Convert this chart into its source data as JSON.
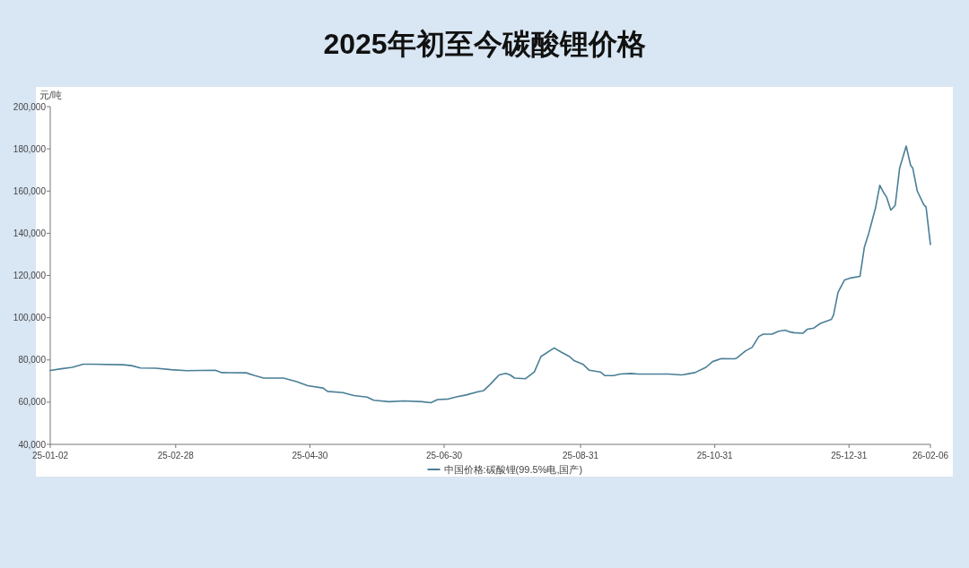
{
  "chart_data": {
    "type": "line",
    "title": "2025年初至今碳酸锂价格",
    "ylabel": "元/吨",
    "x": [
      "2025-01-02",
      "2025-01-07",
      "2025-01-12",
      "2025-01-17",
      "2025-01-21",
      "2025-02-04",
      "2025-02-08",
      "2025-02-12",
      "2025-02-19",
      "2025-02-26",
      "2025-03-05",
      "2025-03-18",
      "2025-03-21",
      "2025-04-01",
      "2025-04-05",
      "2025-04-09",
      "2025-04-18",
      "2025-04-24",
      "2025-04-29",
      "2025-05-06",
      "2025-05-08",
      "2025-05-15",
      "2025-05-20",
      "2025-05-26",
      "2025-05-29",
      "2025-06-05",
      "2025-06-12",
      "2025-06-20",
      "2025-06-24",
      "2025-06-27",
      "2025-07-02",
      "2025-07-06",
      "2025-07-10",
      "2025-07-15",
      "2025-07-18",
      "2025-07-21",
      "2025-07-23",
      "2025-07-25",
      "2025-07-28",
      "2025-07-30",
      "2025-08-01",
      "2025-08-06",
      "2025-08-10",
      "2025-08-13",
      "2025-08-19",
      "2025-08-22",
      "2025-08-26",
      "2025-08-28",
      "2025-09-01",
      "2025-09-04",
      "2025-09-09",
      "2025-09-11",
      "2025-09-15",
      "2025-09-18",
      "2025-09-23",
      "2025-09-26",
      "2025-10-10",
      "2025-10-16",
      "2025-10-22",
      "2025-10-27",
      "2025-10-30",
      "2025-11-03",
      "2025-11-09",
      "2025-11-10",
      "2025-11-14",
      "2025-11-17",
      "2025-11-20",
      "2025-11-22",
      "2025-11-26",
      "2025-11-29",
      "2025-12-02",
      "2025-12-04",
      "2025-12-06",
      "2025-12-10",
      "2025-12-12",
      "2025-12-15",
      "2025-12-18",
      "2025-12-23",
      "2025-12-24",
      "2025-12-26",
      "2025-12-29",
      "2026-01-01",
      "2026-01-05",
      "2026-01-07",
      "2026-01-09",
      "2026-01-12",
      "2026-01-14",
      "2026-01-16",
      "2026-01-17",
      "2026-01-19",
      "2026-01-21",
      "2026-01-23",
      "2026-01-26",
      "2026-01-28",
      "2026-01-29",
      "2026-01-31",
      "2026-02-03",
      "2026-02-04",
      "2026-02-06"
    ],
    "series": [
      {
        "name": "中国价格:碳酸锂(99.5%电,国产)",
        "color": "#4a7f96",
        "values": [
          75000,
          75800,
          76500,
          78000,
          78000,
          77700,
          77300,
          76200,
          76100,
          75400,
          74900,
          75100,
          74000,
          73900,
          72600,
          71400,
          71400,
          69700,
          67800,
          66700,
          65100,
          64500,
          63100,
          62400,
          60900,
          60200,
          60600,
          60200,
          59700,
          61200,
          61500,
          62600,
          63400,
          64800,
          65500,
          68500,
          70700,
          72900,
          73600,
          72900,
          71400,
          71100,
          74300,
          81600,
          85700,
          83800,
          81600,
          79700,
          78000,
          75100,
          74300,
          72600,
          72600,
          73300,
          73600,
          73300,
          73300,
          72900,
          74000,
          76500,
          79200,
          80600,
          80500,
          80900,
          84300,
          86000,
          91100,
          92200,
          92200,
          93600,
          94100,
          93300,
          92900,
          92600,
          94500,
          95100,
          97300,
          99200,
          101400,
          112000,
          117900,
          118900,
          119600,
          133500,
          140100,
          151800,
          162700,
          158800,
          157300,
          151000,
          153200,
          170800,
          181300,
          172200,
          170800,
          160100,
          153500,
          152500,
          134700
        ]
      }
    ],
    "xlim": [
      "2025-01-02",
      "2026-02-06"
    ],
    "xticks": [
      {
        "value": "2025-01-02",
        "label": "25-01-02"
      },
      {
        "value": "2025-02-28",
        "label": "25-02-28"
      },
      {
        "value": "2025-04-30",
        "label": "25-04-30"
      },
      {
        "value": "2025-06-30",
        "label": "25-06-30"
      },
      {
        "value": "2025-08-31",
        "label": "25-08-31"
      },
      {
        "value": "2025-10-31",
        "label": "25-10-31"
      },
      {
        "value": "2025-12-31",
        "label": "25-12-31"
      },
      {
        "value": "2026-02-06",
        "label": "26-02-06"
      }
    ],
    "ylim": [
      40000,
      200000
    ],
    "yticks": [
      {
        "value": 40000,
        "label": "40,000"
      },
      {
        "value": 60000,
        "label": "60,000"
      },
      {
        "value": 80000,
        "label": "80,000"
      },
      {
        "value": 100000,
        "label": "100,000"
      },
      {
        "value": 120000,
        "label": "120,000"
      },
      {
        "value": 140000,
        "label": "140,000"
      },
      {
        "value": 160000,
        "label": "160,000"
      },
      {
        "value": 180000,
        "label": "180,000"
      },
      {
        "value": 200000,
        "label": "200,000"
      }
    ],
    "grid": false,
    "legend": "bottom",
    "marker": "none",
    "line_style": "solid"
  }
}
